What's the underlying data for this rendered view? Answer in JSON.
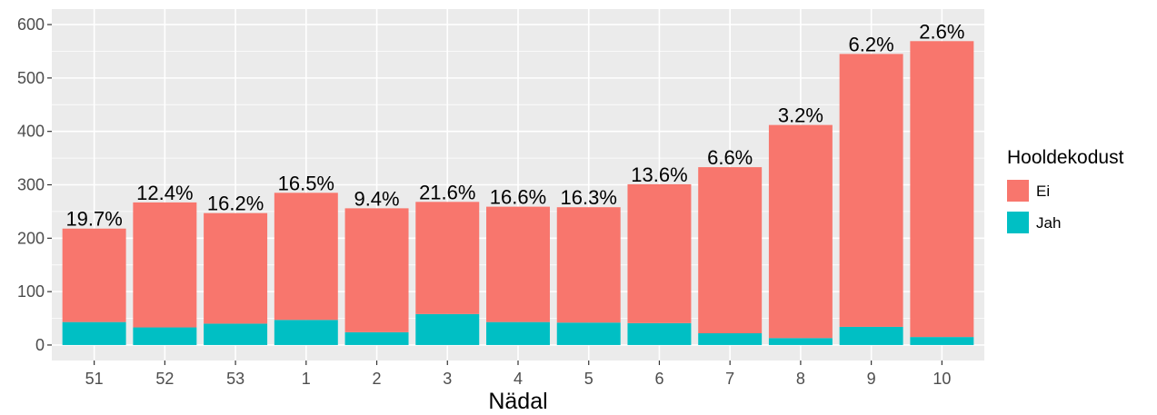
{
  "chart_data": {
    "type": "stacked_bar",
    "x_label": "Nädal",
    "legend_title": "Hooldekodust",
    "categories": [
      "51",
      "52",
      "53",
      "1",
      "2",
      "3",
      "4",
      "5",
      "6",
      "7",
      "8",
      "9",
      "10"
    ],
    "series": [
      {
        "name": "Ei",
        "color": "#F8766D",
        "values": [
          175,
          234,
          207,
          238,
          232,
          210,
          216,
          216,
          260,
          311,
          399,
          511,
          554
        ]
      },
      {
        "name": "Jah",
        "color": "#00BFC4",
        "values": [
          43,
          33,
          40,
          47,
          24,
          58,
          43,
          42,
          41,
          22,
          13,
          34,
          15
        ]
      }
    ],
    "shares": [
      19.7,
      12.4,
      16.2,
      16.5,
      9.4,
      21.6,
      16.6,
      16.3,
      13.6,
      6.6,
      3.2,
      6.2,
      2.6
    ],
    "share_labels": [
      "19.7%",
      "12.4%",
      "16.2%",
      "16.5%",
      "9.4%",
      "21.6%",
      "16.6%",
      "16.3%",
      "13.6%",
      "6.6%",
      "3.2%",
      "6.2%",
      "2.6%"
    ],
    "ylim": [
      -29,
      629
    ],
    "yticks": [
      0,
      100,
      200,
      300,
      400,
      500,
      600
    ],
    "grid": true,
    "legend": "right"
  }
}
